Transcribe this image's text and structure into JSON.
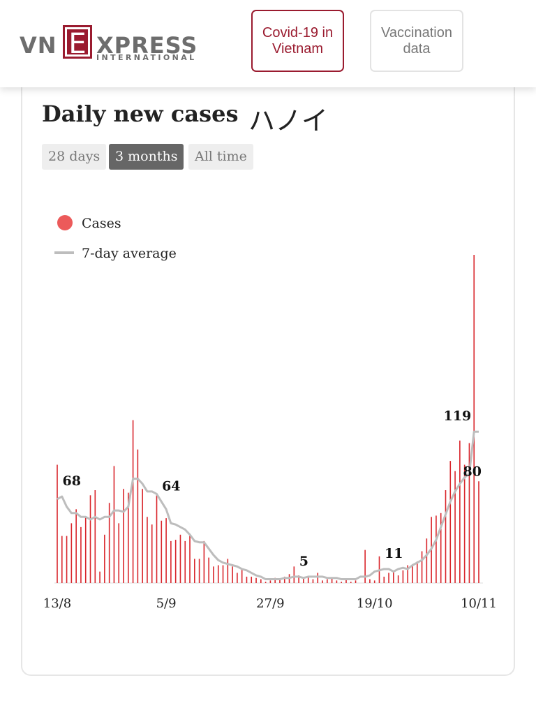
{
  "header": {
    "logo": {
      "left": "VN",
      "mark": "E",
      "right": "XPRESS",
      "sub": "INTERNATIONAL"
    },
    "buttons": [
      "Covid-19 in Vietnam",
      "Vaccination data"
    ]
  },
  "card": {
    "title": "Daily new cases",
    "region": "ハノイ",
    "tabs": [
      "28 days",
      "3 months",
      "All time"
    ],
    "active_tab": 1
  },
  "chart_data": {
    "type": "bar",
    "legend": "top-left",
    "categories": [
      "13/8",
      null,
      null,
      null,
      null,
      null,
      null,
      null,
      null,
      null,
      null,
      null,
      null,
      null,
      null,
      null,
      null,
      null,
      null,
      null,
      null,
      null,
      null,
      "5/9",
      null,
      null,
      null,
      null,
      null,
      null,
      null,
      null,
      null,
      null,
      null,
      null,
      null,
      null,
      null,
      null,
      null,
      null,
      null,
      null,
      null,
      "27/9",
      null,
      null,
      null,
      null,
      null,
      null,
      null,
      null,
      null,
      null,
      null,
      null,
      null,
      null,
      null,
      null,
      null,
      null,
      null,
      null,
      null,
      "19/10",
      null,
      null,
      null,
      null,
      null,
      null,
      null,
      null,
      null,
      null,
      null,
      null,
      null,
      null,
      null,
      null,
      null,
      null,
      null,
      null,
      null,
      "10/11"
    ],
    "ylim": [
      0,
      258
    ],
    "series": [
      {
        "name": "Cases",
        "type": "bar",
        "color": "#d9262c",
        "legend_color": "#ec5a5a",
        "values": [
          93,
          37,
          37,
          47,
          58,
          44,
          52,
          69,
          73,
          9,
          38,
          63,
          92,
          47,
          74,
          71,
          128,
          105,
          74,
          52,
          46,
          69,
          49,
          51,
          33,
          34,
          38,
          33,
          37,
          19,
          19,
          33,
          20,
          13,
          14,
          14,
          19,
          13,
          8,
          11,
          5,
          5,
          4,
          3,
          1,
          2,
          4,
          3,
          5,
          7,
          13,
          6,
          4,
          5,
          3,
          8,
          2,
          3,
          4,
          2,
          1,
          3,
          1,
          2,
          0,
          26,
          3,
          2,
          21,
          5,
          8,
          9,
          6,
          10,
          14,
          14,
          17,
          25,
          35,
          52,
          53,
          55,
          73,
          96,
          88,
          112,
          93,
          110,
          258,
          80
        ],
        "value_labels": [
          null,
          null,
          null,
          null,
          null,
          null,
          null,
          null,
          null,
          null,
          null,
          null,
          null,
          null,
          null,
          null,
          null,
          null,
          null,
          null,
          null,
          null,
          null,
          null,
          null,
          null,
          null,
          null,
          null,
          null,
          null,
          null,
          null,
          null,
          null,
          null,
          null,
          null,
          null,
          null,
          null,
          null,
          null,
          null,
          null,
          null,
          null,
          null,
          null,
          null,
          null,
          null,
          null,
          null,
          null,
          null,
          null,
          null,
          null,
          null,
          null,
          null,
          null,
          null,
          null,
          null,
          null,
          null,
          null,
          null,
          null,
          null,
          null,
          null,
          null,
          null,
          null,
          null,
          null,
          null,
          null,
          null,
          null,
          null,
          null,
          null,
          null,
          null,
          null,
          "80"
        ]
      },
      {
        "name": "7-day average",
        "type": "line",
        "color": "#bdbdbd",
        "values": [
          66,
          68,
          60,
          55,
          55,
          52,
          52,
          50,
          52,
          50,
          52,
          52,
          57,
          57,
          56,
          60,
          82,
          82,
          78,
          72,
          72,
          70,
          64,
          58,
          47,
          46,
          44,
          42,
          38,
          33,
          32,
          32,
          27,
          22,
          18,
          16,
          15,
          14,
          13,
          11,
          10,
          8,
          6,
          5,
          3,
          3,
          3,
          3,
          4,
          4,
          5,
          5,
          4,
          5,
          5,
          5,
          5,
          4,
          4,
          4,
          3,
          3,
          3,
          3,
          5,
          5,
          6,
          9,
          10,
          11,
          11,
          9,
          11,
          12,
          11,
          14,
          16,
          18,
          22,
          27,
          34,
          44,
          54,
          64,
          72,
          78,
          83,
          86,
          119,
          119
        ],
        "value_labels": [
          null,
          "68",
          null,
          null,
          null,
          null,
          null,
          null,
          null,
          null,
          null,
          null,
          null,
          null,
          null,
          null,
          null,
          null,
          null,
          null,
          null,
          null,
          "64",
          null,
          null,
          null,
          null,
          null,
          null,
          null,
          null,
          null,
          null,
          null,
          null,
          null,
          null,
          null,
          null,
          null,
          null,
          null,
          null,
          null,
          null,
          null,
          null,
          null,
          null,
          null,
          "5",
          null,
          null,
          null,
          null,
          null,
          null,
          null,
          null,
          null,
          null,
          null,
          null,
          null,
          null,
          null,
          null,
          null,
          null,
          "11",
          null,
          null,
          null,
          null,
          null,
          null,
          null,
          null,
          null,
          null,
          null,
          null,
          null,
          null,
          null,
          null,
          null,
          null,
          "119",
          null
        ]
      }
    ]
  }
}
